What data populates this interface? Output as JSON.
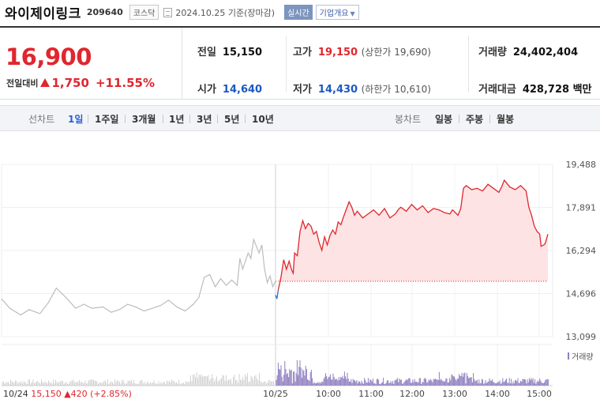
{
  "header": {
    "company_name": "와이제이링크",
    "code": "209640",
    "market": "코스닥",
    "date_text": "2024.10.25 기준(장마감)",
    "realtime_label": "실시간",
    "overview_label": "기업개요"
  },
  "quote": {
    "price": "16,900",
    "change_label": "전일대비",
    "change_value": "1,750",
    "change_pct": "+11.55%",
    "prev_close_label": "전일",
    "prev_close": "15,150",
    "open_label": "시가",
    "open": "14,640",
    "high_label": "고가",
    "high": "19,150",
    "upper_limit": "(상한가 19,690)",
    "low_label": "저가",
    "low": "14,430",
    "lower_limit": "(하한가 10,610)",
    "volume_label": "거래량",
    "volume": "24,402,404",
    "amount_label": "거래대금",
    "amount": "428,728 백만"
  },
  "period_bar": {
    "line_chart_label": "선차트",
    "line_tabs": [
      "1일",
      "1주일",
      "3개월",
      "1년",
      "3년",
      "5년",
      "10년"
    ],
    "active_tab": "1일",
    "candle_label": "봉차트",
    "candle_tabs": [
      "일봉",
      "주봉",
      "월봉"
    ]
  },
  "chart_data": {
    "type": "line",
    "title": "",
    "y_ticks": [
      "19,488",
      "17,891",
      "16,294",
      "14,696",
      "13,099"
    ],
    "ylim": [
      13099,
      19488
    ],
    "x_ticks": [
      "10/25",
      "10:00",
      "11:00",
      "12:00",
      "13:00",
      "14:00",
      "15:00"
    ],
    "reference_price": 15150,
    "volume_legend": "거래량",
    "footer_text": "10/24",
    "footer_prev_close": "15,150",
    "footer_change": "420",
    "footer_pct": "(+2.85%)",
    "colors": {
      "up": "#e0262e",
      "down": "#2f6bd6",
      "prev_day": "#bcbcbc",
      "volume": "#8f7fc0",
      "fill": "#fde3e4"
    },
    "prev_day_points": [
      [
        0,
        14500
      ],
      [
        0.03,
        14150
      ],
      [
        0.07,
        13900
      ],
      [
        0.1,
        14100
      ],
      [
        0.14,
        13950
      ],
      [
        0.17,
        14350
      ],
      [
        0.2,
        14900
      ],
      [
        0.24,
        14500
      ],
      [
        0.27,
        14150
      ],
      [
        0.3,
        14300
      ],
      [
        0.33,
        14150
      ],
      [
        0.37,
        14200
      ],
      [
        0.4,
        14000
      ],
      [
        0.43,
        14100
      ],
      [
        0.46,
        14300
      ],
      [
        0.49,
        14200
      ],
      [
        0.52,
        14050
      ],
      [
        0.55,
        14150
      ],
      [
        0.58,
        14250
      ],
      [
        0.61,
        14450
      ],
      [
        0.64,
        14200
      ],
      [
        0.67,
        14050
      ],
      [
        0.7,
        14300
      ],
      [
        0.72,
        14550
      ],
      [
        0.74,
        15300
      ],
      [
        0.76,
        15400
      ],
      [
        0.78,
        14950
      ],
      [
        0.8,
        15250
      ],
      [
        0.82,
        15000
      ],
      [
        0.84,
        15200
      ],
      [
        0.86,
        15000
      ],
      [
        0.87,
        16000
      ],
      [
        0.88,
        15600
      ],
      [
        0.9,
        16200
      ],
      [
        0.91,
        16000
      ],
      [
        0.92,
        16700
      ],
      [
        0.94,
        16200
      ],
      [
        0.95,
        16500
      ],
      [
        0.96,
        15600
      ],
      [
        0.97,
        15100
      ],
      [
        0.98,
        15350
      ],
      [
        0.99,
        14950
      ],
      [
        1,
        15150
      ]
    ],
    "today_points": [
      [
        0,
        14640
      ],
      [
        0.005,
        14500
      ],
      [
        0.01,
        14830
      ],
      [
        0.02,
        15300
      ],
      [
        0.03,
        15950
      ],
      [
        0.04,
        15600
      ],
      [
        0.05,
        15900
      ],
      [
        0.06,
        15550
      ],
      [
        0.065,
        15450
      ],
      [
        0.07,
        16200
      ],
      [
        0.08,
        16100
      ],
      [
        0.09,
        17000
      ],
      [
        0.1,
        17400
      ],
      [
        0.11,
        17100
      ],
      [
        0.12,
        17300
      ],
      [
        0.13,
        17200
      ],
      [
        0.14,
        16900
      ],
      [
        0.15,
        17000
      ],
      [
        0.16,
        16600
      ],
      [
        0.17,
        16300
      ],
      [
        0.18,
        16800
      ],
      [
        0.19,
        16500
      ],
      [
        0.2,
        16850
      ],
      [
        0.21,
        17050
      ],
      [
        0.22,
        16900
      ],
      [
        0.23,
        17350
      ],
      [
        0.24,
        17250
      ],
      [
        0.25,
        17550
      ],
      [
        0.27,
        18100
      ],
      [
        0.28,
        17900
      ],
      [
        0.29,
        17600
      ],
      [
        0.3,
        17750
      ],
      [
        0.32,
        17500
      ],
      [
        0.34,
        17650
      ],
      [
        0.36,
        17800
      ],
      [
        0.38,
        17600
      ],
      [
        0.4,
        17850
      ],
      [
        0.42,
        17500
      ],
      [
        0.44,
        17650
      ],
      [
        0.45,
        17800
      ],
      [
        0.46,
        17900
      ],
      [
        0.48,
        17750
      ],
      [
        0.5,
        18000
      ],
      [
        0.52,
        17800
      ],
      [
        0.54,
        17950
      ],
      [
        0.56,
        17700
      ],
      [
        0.58,
        17850
      ],
      [
        0.6,
        17800
      ],
      [
        0.62,
        17700
      ],
      [
        0.64,
        17650
      ],
      [
        0.65,
        17800
      ],
      [
        0.66,
        17700
      ],
      [
        0.67,
        17600
      ],
      [
        0.68,
        17850
      ],
      [
        0.69,
        18600
      ],
      [
        0.7,
        18700
      ],
      [
        0.72,
        18550
      ],
      [
        0.74,
        18600
      ],
      [
        0.76,
        18500
      ],
      [
        0.78,
        18750
      ],
      [
        0.8,
        18600
      ],
      [
        0.82,
        18450
      ],
      [
        0.83,
        18650
      ],
      [
        0.84,
        18900
      ],
      [
        0.86,
        18650
      ],
      [
        0.88,
        18550
      ],
      [
        0.9,
        18700
      ],
      [
        0.92,
        18500
      ],
      [
        0.93,
        17900
      ],
      [
        0.94,
        17600
      ],
      [
        0.95,
        17200
      ],
      [
        0.96,
        17000
      ],
      [
        0.97,
        16900
      ],
      [
        0.975,
        16450
      ],
      [
        0.985,
        16500
      ],
      [
        0.99,
        16550
      ],
      [
        1,
        16900
      ]
    ]
  }
}
